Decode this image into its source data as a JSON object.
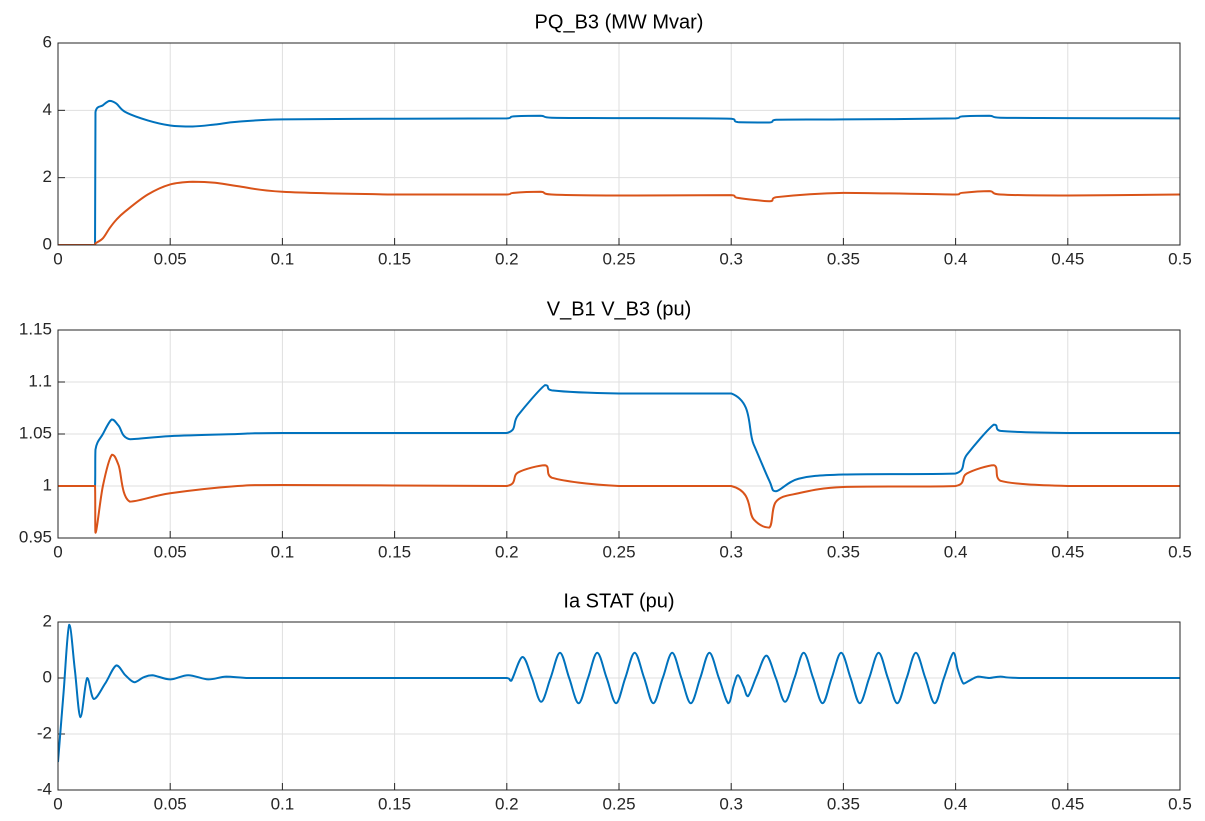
{
  "chart_data": [
    {
      "type": "line",
      "title": "PQ_B3 (MW Mvar)",
      "x": [
        0,
        0.0165,
        0.0167,
        0.02,
        0.023,
        0.026,
        0.03,
        0.04,
        0.05,
        0.06,
        0.07,
        0.08,
        0.1,
        0.15,
        0.2,
        0.203,
        0.215,
        0.22,
        0.25,
        0.3,
        0.303,
        0.317,
        0.32,
        0.35,
        0.4,
        0.403,
        0.415,
        0.42,
        0.45,
        0.5
      ],
      "series": [
        {
          "color": "#0072bd",
          "values": [
            0,
            0,
            3.95,
            4.15,
            4.28,
            4.2,
            3.95,
            3.7,
            3.55,
            3.52,
            3.58,
            3.66,
            3.73,
            3.75,
            3.76,
            3.82,
            3.84,
            3.78,
            3.77,
            3.75,
            3.65,
            3.64,
            3.72,
            3.73,
            3.76,
            3.82,
            3.84,
            3.78,
            3.77,
            3.76
          ]
        },
        {
          "color": "#d95319",
          "values": [
            0,
            0,
            0.05,
            0.2,
            0.5,
            0.75,
            1.0,
            1.5,
            1.8,
            1.88,
            1.85,
            1.75,
            1.58,
            1.5,
            1.5,
            1.55,
            1.58,
            1.5,
            1.47,
            1.48,
            1.4,
            1.3,
            1.42,
            1.55,
            1.5,
            1.55,
            1.6,
            1.5,
            1.47,
            1.5
          ]
        }
      ],
      "xlim": [
        0,
        0.5
      ],
      "xticks": [
        0,
        0.05,
        0.1,
        0.15,
        0.2,
        0.25,
        0.3,
        0.35,
        0.4,
        0.45,
        0.5
      ],
      "ylim": [
        0,
        6
      ],
      "yticks": [
        0,
        2,
        4,
        6
      ],
      "grid": true
    },
    {
      "type": "line",
      "title": "V_B1 V_B3 (pu)",
      "x": [
        0,
        0.0165,
        0.0167,
        0.02,
        0.024,
        0.027,
        0.032,
        0.05,
        0.08,
        0.1,
        0.2,
        0.205,
        0.217,
        0.22,
        0.25,
        0.3,
        0.31,
        0.317,
        0.32,
        0.33,
        0.35,
        0.4,
        0.405,
        0.417,
        0.42,
        0.45,
        0.5
      ],
      "series": [
        {
          "color": "#0072bd",
          "values": [
            1,
            1,
            1.035,
            1.05,
            1.064,
            1.058,
            1.045,
            1.048,
            1.05,
            1.051,
            1.051,
            1.068,
            1.097,
            1.092,
            1.089,
            1.089,
            1.04,
            1.005,
            0.995,
            1.007,
            1.011,
            1.012,
            1.03,
            1.059,
            1.053,
            1.051,
            1.051
          ]
        },
        {
          "color": "#d95319",
          "values": [
            1,
            1,
            0.955,
            1.0,
            1.03,
            1.02,
            0.985,
            0.993,
            1.0,
            1.001,
            1.0,
            1.013,
            1.02,
            1.008,
            1.0,
            1.0,
            0.968,
            0.96,
            0.985,
            0.993,
            0.999,
            1.0,
            1.012,
            1.02,
            1.005,
            1.0,
            1.0
          ]
        }
      ],
      "xlim": [
        0,
        0.5
      ],
      "xticks": [
        0,
        0.05,
        0.1,
        0.15,
        0.2,
        0.25,
        0.3,
        0.35,
        0.4,
        0.45,
        0.5
      ],
      "ylim": [
        0.95,
        1.15
      ],
      "yticks": [
        0.95,
        1,
        1.05,
        1.1,
        1.15
      ],
      "grid": true
    },
    {
      "type": "line",
      "title": "Ia STAT (pu)",
      "x": [
        0,
        0.0025,
        0.005,
        0.0075,
        0.01,
        0.013,
        0.016,
        0.021,
        0.026,
        0.03,
        0.034,
        0.038,
        0.042,
        0.05,
        0.058,
        0.067,
        0.075,
        0.085,
        0.1,
        0.15,
        0.2,
        0.202,
        0.207,
        0.2112,
        0.2153,
        0.2195,
        0.2237,
        0.2278,
        0.232,
        0.2362,
        0.2403,
        0.2445,
        0.2487,
        0.2528,
        0.257,
        0.2612,
        0.2653,
        0.2695,
        0.2737,
        0.2778,
        0.282,
        0.2862,
        0.2903,
        0.2945,
        0.2987,
        0.301,
        0.303,
        0.3055,
        0.3075,
        0.3115,
        0.3157,
        0.3199,
        0.324,
        0.3282,
        0.3323,
        0.3365,
        0.3407,
        0.3448,
        0.349,
        0.3532,
        0.3573,
        0.3615,
        0.3657,
        0.3698,
        0.374,
        0.3782,
        0.3823,
        0.3865,
        0.3907,
        0.3948,
        0.399,
        0.401,
        0.4035,
        0.406,
        0.41,
        0.415,
        0.42,
        0.43,
        0.5
      ],
      "series": [
        {
          "color": "#0072bd",
          "values": [
            -3,
            -0.5,
            1.9,
            0.3,
            -1.4,
            0,
            -0.75,
            -0.2,
            0.45,
            0.1,
            -0.15,
            0.02,
            0.1,
            -0.05,
            0.1,
            -0.05,
            0.05,
            0,
            0,
            0,
            0,
            -0.1,
            0.75,
            0,
            -0.85,
            0,
            0.9,
            0,
            -0.9,
            0,
            0.9,
            0,
            -0.9,
            0,
            0.9,
            0,
            -0.9,
            0,
            0.9,
            0,
            -0.9,
            0,
            0.9,
            0,
            -0.9,
            -0.3,
            0.1,
            -0.3,
            -0.65,
            0.1,
            0.8,
            0,
            -0.85,
            0,
            0.9,
            0,
            -0.9,
            0,
            0.9,
            0,
            -0.9,
            0,
            0.9,
            0,
            -0.9,
            0,
            0.9,
            0,
            -0.9,
            0,
            0.9,
            0.3,
            -0.2,
            -0.1,
            0.05,
            0,
            0.05,
            0,
            0
          ]
        }
      ],
      "xlim": [
        0,
        0.5
      ],
      "xticks": [
        0,
        0.05,
        0.1,
        0.15,
        0.2,
        0.25,
        0.3,
        0.35,
        0.4,
        0.45,
        0.5
      ],
      "ylim": [
        -4,
        2
      ],
      "yticks": [
        -4,
        -2,
        0,
        2
      ],
      "grid": true
    }
  ]
}
